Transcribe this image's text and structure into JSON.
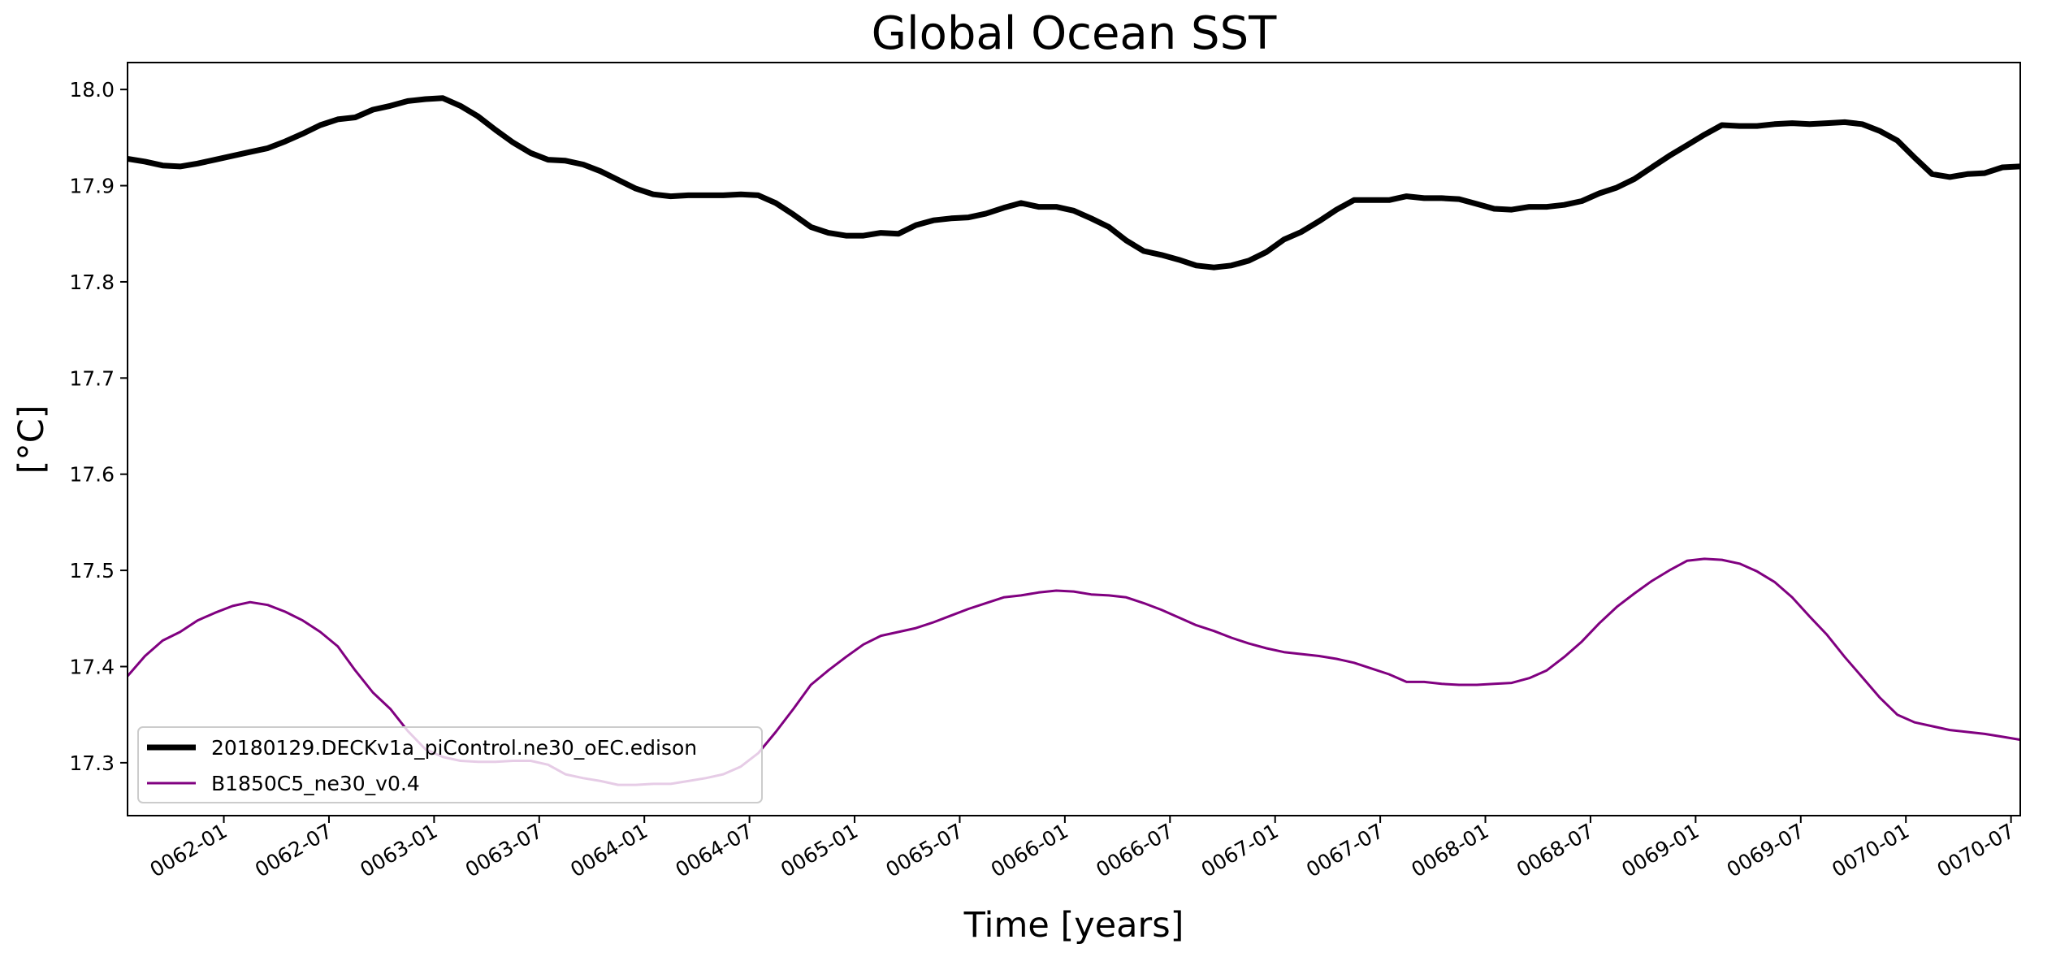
{
  "chart_data": {
    "type": "line",
    "title": "Global Ocean SST",
    "xlabel": "Time [years]",
    "ylabel": "[°C]",
    "ylim": [
      17.245,
      18.028
    ],
    "xlim": [
      61.5,
      70.502
    ],
    "x_ticks": [
      {
        "value": 61.958,
        "label": "0062-01"
      },
      {
        "value": 62.458,
        "label": "0062-07"
      },
      {
        "value": 62.958,
        "label": "0063-01"
      },
      {
        "value": 63.458,
        "label": "0063-07"
      },
      {
        "value": 63.958,
        "label": "0064-01"
      },
      {
        "value": 64.458,
        "label": "0064-07"
      },
      {
        "value": 64.958,
        "label": "0065-01"
      },
      {
        "value": 65.458,
        "label": "0065-07"
      },
      {
        "value": 65.958,
        "label": "0066-01"
      },
      {
        "value": 66.458,
        "label": "0066-07"
      },
      {
        "value": 66.958,
        "label": "0067-01"
      },
      {
        "value": 67.458,
        "label": "0067-07"
      },
      {
        "value": 67.958,
        "label": "0068-01"
      },
      {
        "value": 68.458,
        "label": "0068-07"
      },
      {
        "value": 68.958,
        "label": "0069-01"
      },
      {
        "value": 69.458,
        "label": "0069-07"
      },
      {
        "value": 69.958,
        "label": "0070-01"
      },
      {
        "value": 70.458,
        "label": "0070-07"
      }
    ],
    "y_ticks": [
      {
        "value": 17.3,
        "label": "17.3"
      },
      {
        "value": 17.4,
        "label": "17.4"
      },
      {
        "value": 17.5,
        "label": "17.5"
      },
      {
        "value": 17.6,
        "label": "17.6"
      },
      {
        "value": 17.7,
        "label": "17.7"
      },
      {
        "value": 17.8,
        "label": "17.8"
      },
      {
        "value": 17.9,
        "label": "17.9"
      },
      {
        "value": 18.0,
        "label": "18.0"
      }
    ],
    "legend_position": "lower-left",
    "grid": false,
    "series": [
      {
        "name": "20180129.DECKv1a_piControl.ne30_oEC.edison",
        "color": "#000000",
        "linewidth": "thick",
        "points": [
          [
            61.5,
            17.928
          ],
          [
            61.583,
            17.925
          ],
          [
            61.667,
            17.921
          ],
          [
            61.75,
            17.92
          ],
          [
            61.833,
            17.923
          ],
          [
            61.917,
            17.927
          ],
          [
            62.0,
            17.931
          ],
          [
            62.083,
            17.935
          ],
          [
            62.167,
            17.939
          ],
          [
            62.25,
            17.946
          ],
          [
            62.333,
            17.954
          ],
          [
            62.417,
            17.963
          ],
          [
            62.5,
            17.969
          ],
          [
            62.583,
            17.971
          ],
          [
            62.667,
            17.979
          ],
          [
            62.75,
            17.983
          ],
          [
            62.833,
            17.988
          ],
          [
            62.917,
            17.99
          ],
          [
            63.0,
            17.991
          ],
          [
            63.083,
            17.983
          ],
          [
            63.167,
            17.972
          ],
          [
            63.25,
            17.958
          ],
          [
            63.333,
            17.945
          ],
          [
            63.417,
            17.934
          ],
          [
            63.5,
            17.927
          ],
          [
            63.583,
            17.926
          ],
          [
            63.667,
            17.922
          ],
          [
            63.75,
            17.915
          ],
          [
            63.833,
            17.906
          ],
          [
            63.917,
            17.897
          ],
          [
            64.0,
            17.891
          ],
          [
            64.083,
            17.889
          ],
          [
            64.167,
            17.89
          ],
          [
            64.25,
            17.89
          ],
          [
            64.333,
            17.89
          ],
          [
            64.417,
            17.891
          ],
          [
            64.5,
            17.89
          ],
          [
            64.583,
            17.882
          ],
          [
            64.667,
            17.87
          ],
          [
            64.75,
            17.857
          ],
          [
            64.833,
            17.851
          ],
          [
            64.917,
            17.848
          ],
          [
            65.0,
            17.848
          ],
          [
            65.083,
            17.851
          ],
          [
            65.167,
            17.85
          ],
          [
            65.25,
            17.859
          ],
          [
            65.333,
            17.864
          ],
          [
            65.417,
            17.866
          ],
          [
            65.5,
            17.867
          ],
          [
            65.583,
            17.871
          ],
          [
            65.667,
            17.877
          ],
          [
            65.75,
            17.882
          ],
          [
            65.833,
            17.878
          ],
          [
            65.917,
            17.878
          ],
          [
            66.0,
            17.874
          ],
          [
            66.083,
            17.866
          ],
          [
            66.167,
            17.857
          ],
          [
            66.25,
            17.843
          ],
          [
            66.333,
            17.832
          ],
          [
            66.417,
            17.828
          ],
          [
            66.5,
            17.823
          ],
          [
            66.583,
            17.817
          ],
          [
            66.667,
            17.815
          ],
          [
            66.75,
            17.817
          ],
          [
            66.833,
            17.822
          ],
          [
            66.917,
            17.831
          ],
          [
            67.0,
            17.844
          ],
          [
            67.083,
            17.852
          ],
          [
            67.167,
            17.863
          ],
          [
            67.25,
            17.875
          ],
          [
            67.333,
            17.885
          ],
          [
            67.417,
            17.885
          ],
          [
            67.5,
            17.885
          ],
          [
            67.583,
            17.889
          ],
          [
            67.667,
            17.887
          ],
          [
            67.75,
            17.887
          ],
          [
            67.833,
            17.886
          ],
          [
            67.917,
            17.881
          ],
          [
            68.0,
            17.876
          ],
          [
            68.083,
            17.875
          ],
          [
            68.167,
            17.878
          ],
          [
            68.25,
            17.878
          ],
          [
            68.333,
            17.88
          ],
          [
            68.417,
            17.884
          ],
          [
            68.5,
            17.892
          ],
          [
            68.583,
            17.898
          ],
          [
            68.667,
            17.907
          ],
          [
            68.75,
            17.919
          ],
          [
            68.833,
            17.931
          ],
          [
            68.917,
            17.942
          ],
          [
            69.0,
            17.953
          ],
          [
            69.083,
            17.963
          ],
          [
            69.167,
            17.962
          ],
          [
            69.25,
            17.962
          ],
          [
            69.333,
            17.964
          ],
          [
            69.417,
            17.965
          ],
          [
            69.5,
            17.964
          ],
          [
            69.583,
            17.965
          ],
          [
            69.667,
            17.966
          ],
          [
            69.75,
            17.964
          ],
          [
            69.833,
            17.957
          ],
          [
            69.917,
            17.947
          ],
          [
            70.0,
            17.929
          ],
          [
            70.083,
            17.912
          ],
          [
            70.167,
            17.909
          ],
          [
            70.25,
            17.912
          ],
          [
            70.333,
            17.913
          ],
          [
            70.417,
            17.919
          ],
          [
            70.5,
            17.92
          ]
        ]
      },
      {
        "name": "B1850C5_ne30_v0.4",
        "color": "#800080",
        "linewidth": "thin",
        "points": [
          [
            61.5,
            17.39
          ],
          [
            61.583,
            17.411
          ],
          [
            61.667,
            17.427
          ],
          [
            61.75,
            17.436
          ],
          [
            61.833,
            17.448
          ],
          [
            61.917,
            17.456
          ],
          [
            62.0,
            17.463
          ],
          [
            62.083,
            17.467
          ],
          [
            62.167,
            17.464
          ],
          [
            62.25,
            17.457
          ],
          [
            62.333,
            17.448
          ],
          [
            62.417,
            17.436
          ],
          [
            62.5,
            17.421
          ],
          [
            62.583,
            17.396
          ],
          [
            62.667,
            17.373
          ],
          [
            62.75,
            17.356
          ],
          [
            62.833,
            17.333
          ],
          [
            62.917,
            17.314
          ],
          [
            63.0,
            17.306
          ],
          [
            63.083,
            17.302
          ],
          [
            63.167,
            17.301
          ],
          [
            63.25,
            17.301
          ],
          [
            63.333,
            17.302
          ],
          [
            63.417,
            17.302
          ],
          [
            63.5,
            17.298
          ],
          [
            63.583,
            17.288
          ],
          [
            63.667,
            17.284
          ],
          [
            63.75,
            17.281
          ],
          [
            63.833,
            17.277
          ],
          [
            63.917,
            17.277
          ],
          [
            64.0,
            17.278
          ],
          [
            64.083,
            17.278
          ],
          [
            64.167,
            17.281
          ],
          [
            64.25,
            17.284
          ],
          [
            64.333,
            17.288
          ],
          [
            64.417,
            17.296
          ],
          [
            64.5,
            17.31
          ],
          [
            64.583,
            17.332
          ],
          [
            64.667,
            17.356
          ],
          [
            64.75,
            17.381
          ],
          [
            64.833,
            17.396
          ],
          [
            64.917,
            17.41
          ],
          [
            65.0,
            17.423
          ],
          [
            65.083,
            17.432
          ],
          [
            65.167,
            17.436
          ],
          [
            65.25,
            17.44
          ],
          [
            65.333,
            17.446
          ],
          [
            65.417,
            17.453
          ],
          [
            65.5,
            17.46
          ],
          [
            65.583,
            17.466
          ],
          [
            65.667,
            17.472
          ],
          [
            65.75,
            17.474
          ],
          [
            65.833,
            17.477
          ],
          [
            65.917,
            17.479
          ],
          [
            66.0,
            17.478
          ],
          [
            66.083,
            17.475
          ],
          [
            66.167,
            17.474
          ],
          [
            66.25,
            17.472
          ],
          [
            66.333,
            17.466
          ],
          [
            66.417,
            17.459
          ],
          [
            66.5,
            17.451
          ],
          [
            66.583,
            17.443
          ],
          [
            66.667,
            17.437
          ],
          [
            66.75,
            17.43
          ],
          [
            66.833,
            17.424
          ],
          [
            66.917,
            17.419
          ],
          [
            67.0,
            17.415
          ],
          [
            67.083,
            17.413
          ],
          [
            67.167,
            17.411
          ],
          [
            67.25,
            17.408
          ],
          [
            67.333,
            17.404
          ],
          [
            67.417,
            17.398
          ],
          [
            67.5,
            17.392
          ],
          [
            67.583,
            17.384
          ],
          [
            67.667,
            17.384
          ],
          [
            67.75,
            17.382
          ],
          [
            67.833,
            17.381
          ],
          [
            67.917,
            17.381
          ],
          [
            68.0,
            17.382
          ],
          [
            68.083,
            17.383
          ],
          [
            68.167,
            17.388
          ],
          [
            68.25,
            17.396
          ],
          [
            68.333,
            17.41
          ],
          [
            68.417,
            17.426
          ],
          [
            68.5,
            17.445
          ],
          [
            68.583,
            17.462
          ],
          [
            68.667,
            17.476
          ],
          [
            68.75,
            17.489
          ],
          [
            68.833,
            17.5
          ],
          [
            68.917,
            17.51
          ],
          [
            69.0,
            17.512
          ],
          [
            69.083,
            17.511
          ],
          [
            69.167,
            17.507
          ],
          [
            69.25,
            17.499
          ],
          [
            69.333,
            17.488
          ],
          [
            69.417,
            17.472
          ],
          [
            69.5,
            17.452
          ],
          [
            69.583,
            17.433
          ],
          [
            69.667,
            17.41
          ],
          [
            69.75,
            17.389
          ],
          [
            69.833,
            17.368
          ],
          [
            69.917,
            17.35
          ],
          [
            70.0,
            17.342
          ],
          [
            70.083,
            17.338
          ],
          [
            70.167,
            17.334
          ],
          [
            70.25,
            17.332
          ],
          [
            70.333,
            17.33
          ],
          [
            70.417,
            17.327
          ],
          [
            70.5,
            17.324
          ]
        ]
      }
    ]
  }
}
